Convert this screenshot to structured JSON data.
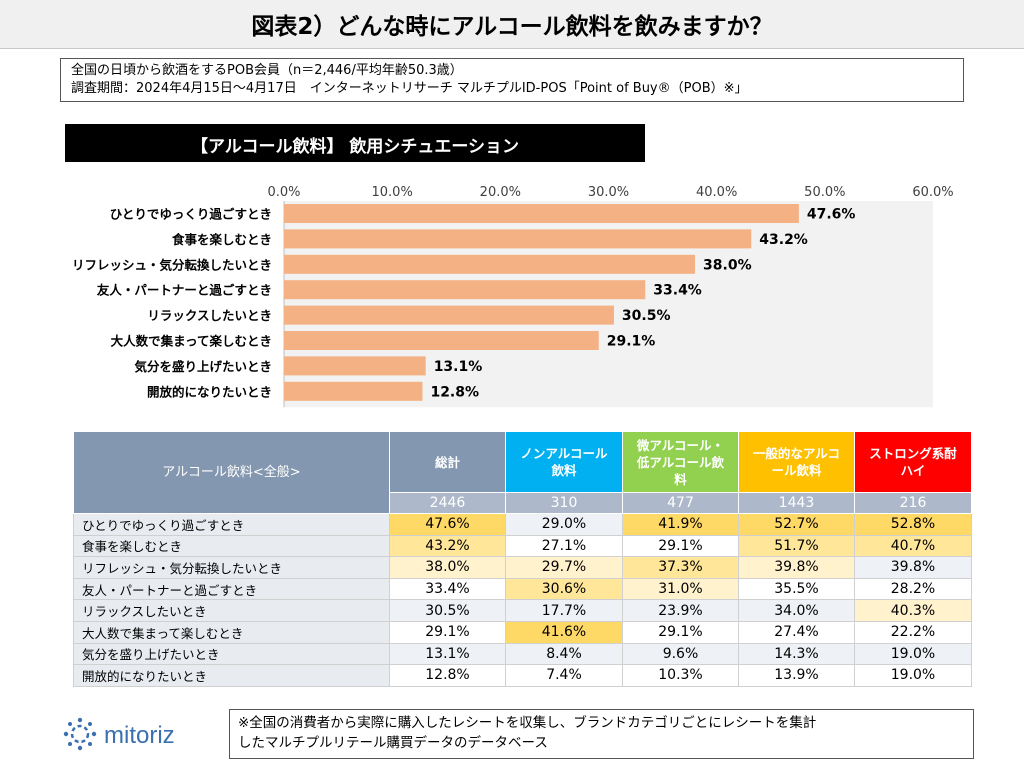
{
  "title": "図表2）どんな時にアルコール飲料を飲みますか？",
  "info": {
    "line1": "全国の日頃から飲酒をするPOB会員（n＝2,446/平均年齢50.3歳）",
    "line2": "調査期間：2024年4月15日～4月17日　インターネットリサーチ マルチプルID-POS「Point of Buy®（POB）※」"
  },
  "section_title": "【アルコール飲料】 飲用シチュエーション",
  "chart_data": {
    "type": "bar",
    "orientation": "horizontal",
    "categories": [
      "ひとりでゆっくり過ごすとき",
      "食事を楽しむとき",
      "リフレッシュ・気分転換したいとき",
      "友人・パートナーと過ごすとき",
      "リラックスしたいとき",
      "大人数で集まって楽しむとき",
      "気分を盛り上げたいとき",
      "開放的になりたいとき"
    ],
    "values": [
      47.6,
      43.2,
      38.0,
      33.4,
      30.5,
      29.1,
      13.1,
      12.8
    ],
    "value_labels": [
      "47.6%",
      "43.2%",
      "38.0%",
      "33.4%",
      "30.5%",
      "29.1%",
      "13.1%",
      "12.8%"
    ],
    "xticks": [
      "0.0%",
      "10.0%",
      "20.0%",
      "30.0%",
      "40.0%",
      "50.0%",
      "60.0%"
    ],
    "xlim": [
      0,
      60
    ],
    "axis_position": "top",
    "grid": false,
    "bar_color": "#f4b183",
    "plot_background": "#f2f2f2"
  },
  "table": {
    "corner_label": "アルコール飲料<全般>",
    "columns": [
      {
        "label": "総計",
        "n": "2446",
        "color": "#8497b0"
      },
      {
        "label": "ノンアルコール飲料",
        "n": "310",
        "color": "#00b0f0"
      },
      {
        "label": "微アルコール・低アルコール飲料",
        "n": "477",
        "color": "#92d050"
      },
      {
        "label": "一般的なアルコール飲料",
        "n": "1443",
        "color": "#ffc000"
      },
      {
        "label": "ストロング系酎ハイ",
        "n": "216",
        "color": "#ff0000"
      }
    ],
    "rows": [
      {
        "label": "ひとりでゆっくり過ごすとき",
        "values": [
          "47.6%",
          "29.0%",
          "41.9%",
          "52.7%",
          "52.8%"
        ]
      },
      {
        "label": "食事を楽しむとき",
        "values": [
          "43.2%",
          "27.1%",
          "29.1%",
          "51.7%",
          "40.7%"
        ]
      },
      {
        "label": "リフレッシュ・気分転換したいとき",
        "values": [
          "38.0%",
          "29.7%",
          "37.3%",
          "39.8%",
          "39.8%"
        ]
      },
      {
        "label": "友人・パートナーと過ごすとき",
        "values": [
          "33.4%",
          "30.6%",
          "31.0%",
          "35.5%",
          "28.2%"
        ]
      },
      {
        "label": "リラックスしたいとき",
        "values": [
          "30.5%",
          "17.7%",
          "23.9%",
          "34.0%",
          "40.3%"
        ]
      },
      {
        "label": "大人数で集まって楽しむとき",
        "values": [
          "29.1%",
          "41.6%",
          "29.1%",
          "27.4%",
          "22.2%"
        ]
      },
      {
        "label": "気分を盛り上げたいとき",
        "values": [
          "13.1%",
          "8.4%",
          "9.6%",
          "14.3%",
          "19.0%"
        ]
      },
      {
        "label": "開放的になりたいとき",
        "values": [
          "12.8%",
          "7.4%",
          "10.3%",
          "13.9%",
          "19.0%"
        ]
      }
    ],
    "highlight_colors": {
      "strong": "#ffd966",
      "medium": "#ffe699",
      "light": "#fff2cc"
    }
  },
  "logo": {
    "text": "mitoriz",
    "color": "#3a6fb0"
  },
  "footnote": {
    "line1": "※全国の消費者から実際に購入したレシートを収集し、ブランドカテゴリごとにレシートを集計",
    "line2": "したマルチプルリテール購買データのデータベース"
  }
}
